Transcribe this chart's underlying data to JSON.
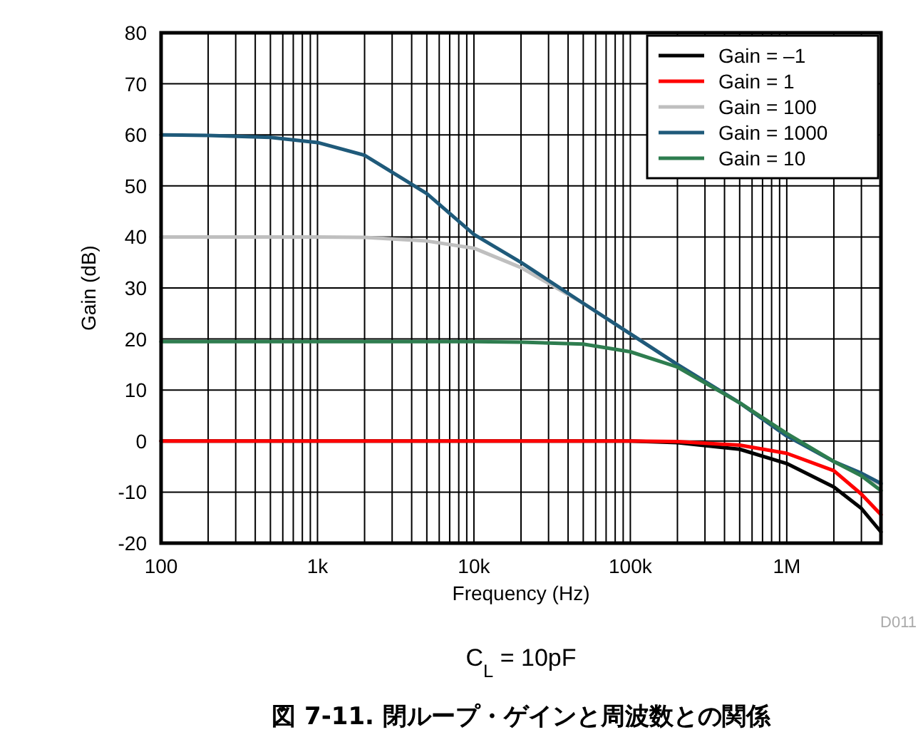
{
  "chart_data": {
    "type": "line",
    "title": "図 7-11. 閉ループ・ゲインと周波数との関係",
    "xlabel": "Frequency (Hz)",
    "ylabel": "Gain (dB)",
    "annotations": [
      "D011",
      "C$_{L}$ = 10pF"
    ],
    "log": "x",
    "grid": true,
    "legend": "top right",
    "line_style": "solid",
    "marker": "none",
    "xlim": [
      100,
      4000000
    ],
    "ylim": [
      -20,
      80
    ],
    "xticks": [
      {
        "value": 100,
        "label": "100"
      },
      {
        "value": 1000,
        "label": "1k"
      },
      {
        "value": 10000,
        "label": "10k"
      },
      {
        "value": 100000,
        "label": "100k"
      },
      {
        "value": 1000000,
        "label": "1M"
      }
    ],
    "yticks": [
      -20,
      -10,
      0,
      10,
      20,
      30,
      40,
      50,
      60,
      70,
      80
    ],
    "x": [
      100,
      200,
      500,
      1000,
      2000,
      5000,
      10000,
      20000,
      50000,
      100000,
      200000,
      500000,
      1000000,
      2000000,
      3000000,
      4000000
    ],
    "series": [
      {
        "name": "Gain = –1",
        "color": "#000000",
        "values": [
          0,
          0,
          0,
          0,
          0,
          0,
          0,
          0,
          0,
          0,
          -0.3,
          -1.6,
          -4.4,
          -9,
          -13.2,
          -17.8
        ]
      },
      {
        "name": "Gain = 1",
        "color": "#ff0000",
        "values": [
          0,
          0,
          0,
          0,
          0,
          0,
          0,
          0,
          0,
          0,
          -0.1,
          -0.8,
          -2.4,
          -5.8,
          -10.4,
          -14.4
        ]
      },
      {
        "name": "Gain = 100",
        "color": "#bfbfbf",
        "values": [
          40,
          40,
          40,
          40,
          39.9,
          39.2,
          37.8,
          34,
          27,
          21,
          15,
          7.5,
          1,
          -4,
          -6.5,
          -8.5
        ]
      },
      {
        "name": "Gain = 1000",
        "color": "#1f5a7a",
        "values": [
          60,
          59.9,
          59.5,
          58.5,
          56,
          48.5,
          40.5,
          35,
          27,
          21,
          15,
          7.5,
          1,
          -4,
          -6.3,
          -8.3
        ]
      },
      {
        "name": "Gain = 10",
        "color": "#2e7d4f",
        "values": [
          19.5,
          19.5,
          19.5,
          19.5,
          19.5,
          19.5,
          19.5,
          19.4,
          19,
          17.5,
          14.5,
          7.5,
          1.5,
          -4,
          -6.8,
          -9.7
        ]
      }
    ]
  }
}
